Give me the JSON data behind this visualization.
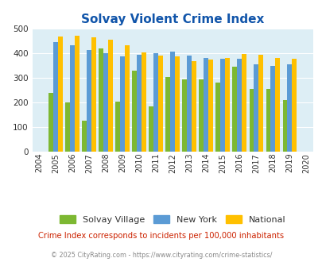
{
  "title": "Solvay Violent Crime Index",
  "years": [
    2004,
    2005,
    2006,
    2007,
    2008,
    2009,
    2010,
    2011,
    2012,
    2013,
    2014,
    2015,
    2016,
    2017,
    2018,
    2019,
    2020
  ],
  "solvay": [
    null,
    240,
    200,
    126,
    420,
    205,
    330,
    184,
    305,
    295,
    296,
    281,
    345,
    257,
    257,
    210,
    null
  ],
  "new_york": [
    null,
    446,
    434,
    414,
    400,
    387,
    393,
    400,
    406,
    391,
    383,
    380,
    377,
    357,
    350,
    357,
    null
  ],
  "national": [
    null,
    470,
    473,
    466,
    455,
    432,
    405,
    390,
    389,
    368,
    376,
    383,
    397,
    394,
    381,
    380,
    null
  ],
  "solvay_color": "#7db832",
  "ny_color": "#5b9bd5",
  "national_color": "#ffc000",
  "bg_color": "#ddeef5",
  "title_color": "#1155aa",
  "subtitle": "Crime Index corresponds to incidents per 100,000 inhabitants",
  "subtitle_color": "#cc2200",
  "footer": "© 2025 CityRating.com - https://www.cityrating.com/crime-statistics/",
  "footer_color": "#888888",
  "ylim": [
    0,
    500
  ],
  "yticks": [
    0,
    100,
    200,
    300,
    400,
    500
  ],
  "bar_width": 0.28
}
